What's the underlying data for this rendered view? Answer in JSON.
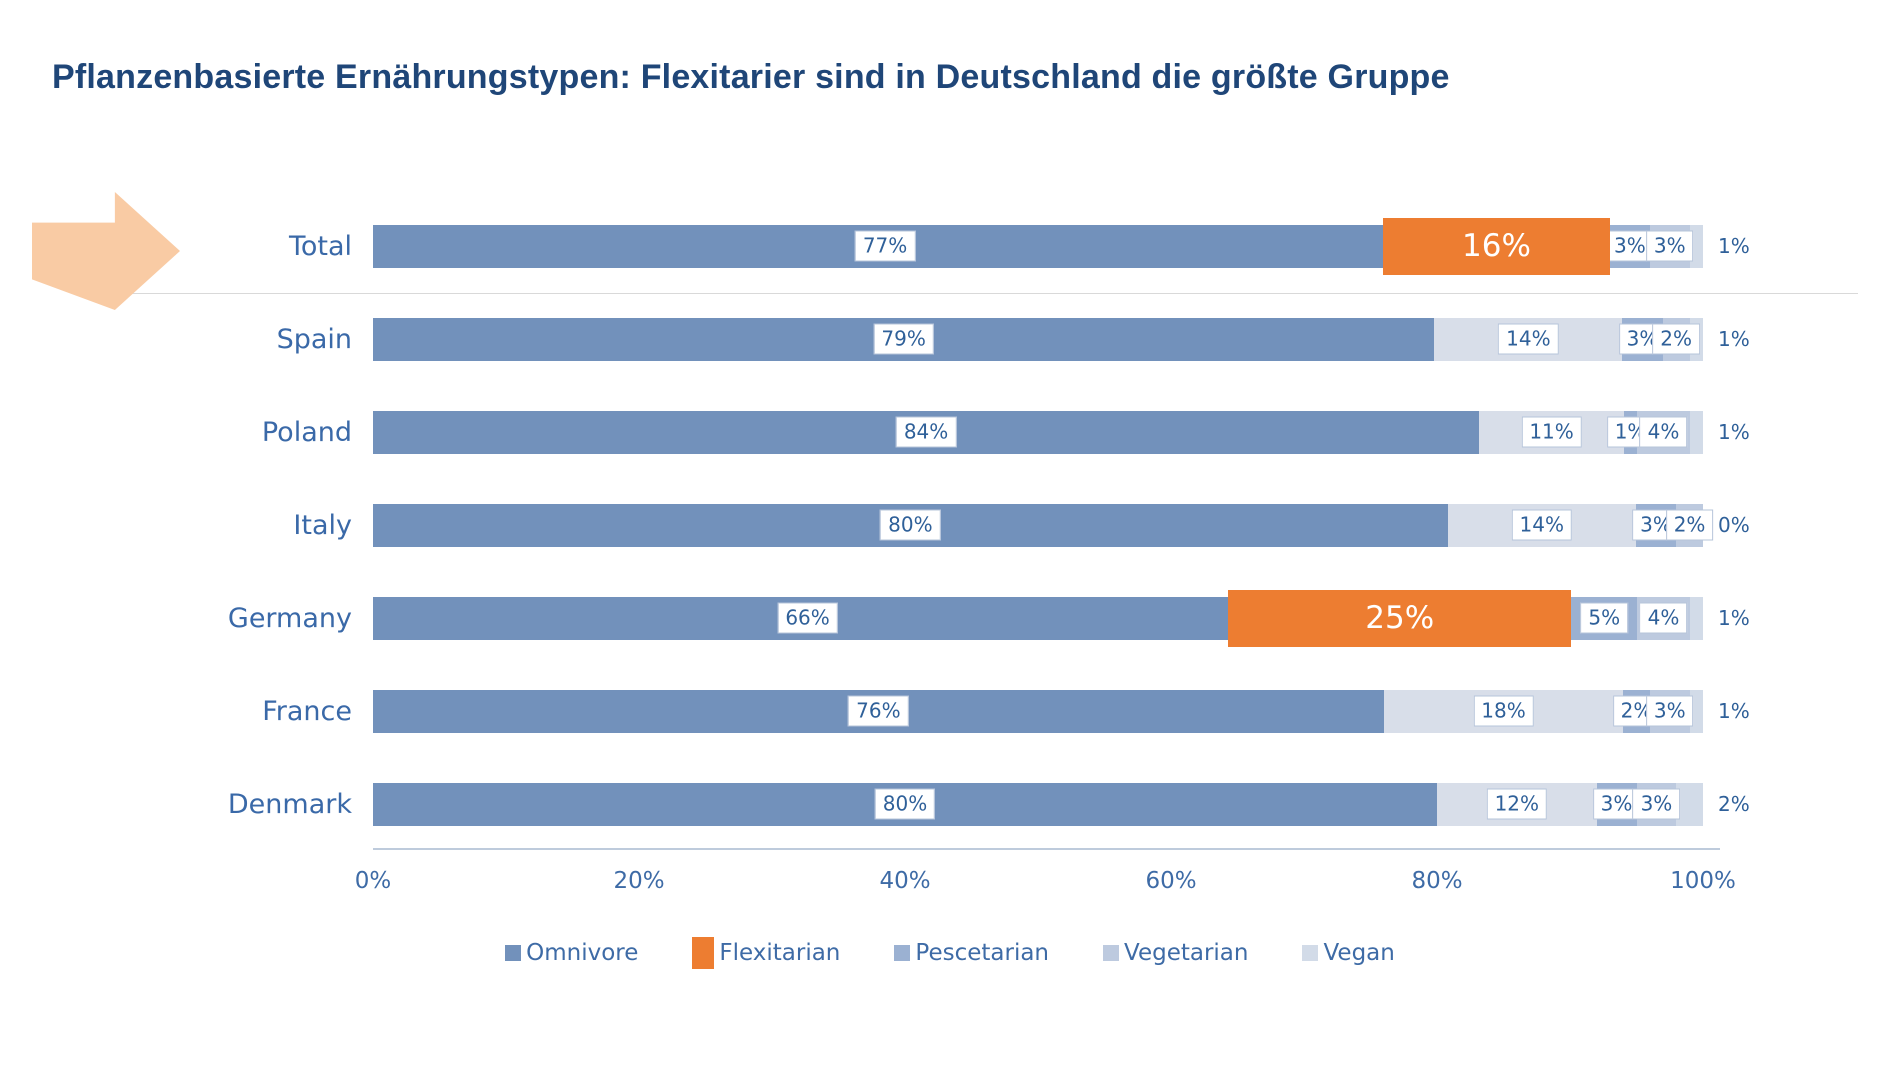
{
  "title": "Pflanzenbasierte Ernährungstypen: Flexitarier sind in Deutschland die größte Gruppe",
  "chart_data": {
    "type": "bar",
    "stacked": true,
    "orientation": "horizontal",
    "categories": [
      "Total",
      "Spain",
      "Poland",
      "Italy",
      "Germany",
      "France",
      "Denmark"
    ],
    "series": [
      {
        "name": "Omnivore",
        "values": [
          77,
          79,
          84,
          80,
          66,
          76,
          80
        ]
      },
      {
        "name": "Flexitarian",
        "values": [
          16,
          14,
          11,
          14,
          25,
          18,
          12
        ]
      },
      {
        "name": "Pescetarian",
        "values": [
          3,
          3,
          1,
          3,
          5,
          2,
          3
        ]
      },
      {
        "name": "Vegetarian",
        "values": [
          3,
          2,
          4,
          2,
          4,
          3,
          3
        ]
      },
      {
        "name": "Vegan",
        "values": [
          1,
          1,
          1,
          0,
          1,
          1,
          2
        ]
      }
    ],
    "highlighted_flexitarian_rows": [
      "Total",
      "Germany"
    ],
    "x_ticks": [
      "0%",
      "20%",
      "40%",
      "60%",
      "80%",
      "100%"
    ],
    "xlim": [
      0,
      100
    ],
    "value_suffix": "%",
    "legend": [
      "Omnivore",
      "Flexitarian",
      "Pescetarian",
      "Vegetarian",
      "Vegan"
    ],
    "legend_position": "bottom",
    "grid": false
  },
  "colors": {
    "title_text": "#1F4678",
    "row_label_text": "#3A69A8",
    "value_text": "#2F6099",
    "axis_text": "#3E6BA6",
    "omnivore": "#7291BB",
    "flexitarian_highlight": "#ED7D31",
    "flexitarian_muted": "#D8DEE9",
    "pescetarian": "#9BB1D2",
    "vegetarian": "#BDCADF",
    "vegan": "#D2DBE8",
    "label_box_border": "#B6C4DA",
    "divider_line": "#D9D9D9",
    "axis_line": "#BECBDC",
    "arrow_fill": "#F9CBA4"
  }
}
